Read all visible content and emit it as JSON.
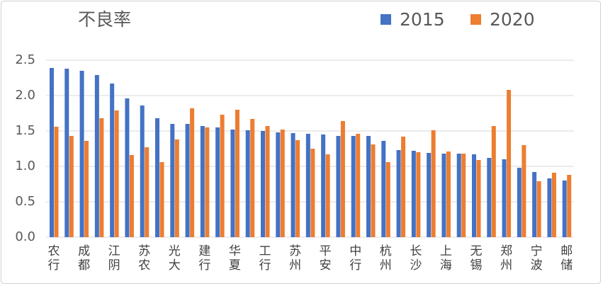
{
  "chart_data": {
    "type": "bar",
    "title": "不良率",
    "categories": [
      "农行",
      null,
      "成都",
      null,
      "江阴",
      null,
      "苏农",
      null,
      "光大",
      null,
      "建行",
      null,
      "华夏",
      null,
      "工行",
      null,
      "苏州",
      null,
      "平安",
      null,
      "中行",
      null,
      "杭州",
      null,
      "长沙",
      null,
      "上海",
      null,
      "无锡",
      null,
      "郑州",
      null,
      "宁波",
      null,
      "邮储"
    ],
    "series": [
      {
        "name": "2015",
        "color": "#4472c4",
        "values": [
          2.39,
          2.38,
          2.35,
          2.29,
          2.17,
          1.96,
          1.86,
          1.68,
          1.6,
          1.6,
          1.57,
          1.55,
          1.52,
          1.51,
          1.5,
          1.48,
          1.47,
          1.46,
          1.45,
          1.43,
          1.43,
          1.43,
          1.36,
          1.23,
          1.22,
          1.19,
          1.18,
          1.18,
          1.17,
          1.12,
          1.1,
          0.98,
          0.92,
          0.83,
          0.8
        ]
      },
      {
        "name": "2020",
        "color": "#ed7d31",
        "values": [
          1.56,
          1.43,
          1.36,
          1.68,
          1.79,
          1.16,
          1.27,
          1.06,
          1.38,
          1.82,
          1.55,
          1.73,
          1.8,
          1.67,
          1.57,
          1.52,
          1.37,
          1.25,
          1.17,
          1.64,
          1.46,
          1.31,
          1.06,
          1.42,
          1.2,
          1.51,
          1.21,
          1.18,
          1.09,
          1.57,
          2.08,
          1.3,
          0.79,
          0.91,
          0.88
        ]
      }
    ],
    "ylim": [
      0,
      2.5
    ],
    "yticks": [
      {
        "value": 0,
        "label": "0.0"
      },
      {
        "value": 0.5,
        "label": "0.5"
      },
      {
        "value": 1,
        "label": "1.0"
      },
      {
        "value": 1.5,
        "label": "1.5"
      },
      {
        "value": 2,
        "label": "2.0"
      },
      {
        "value": 2.5,
        "label": "2.5"
      }
    ],
    "grid": true,
    "legend": "top-right"
  }
}
